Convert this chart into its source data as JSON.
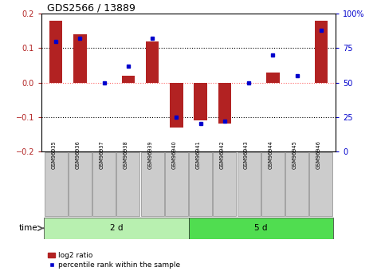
{
  "title": "GDS2566 / 13889",
  "samples": [
    "GSM96935",
    "GSM96936",
    "GSM96937",
    "GSM96938",
    "GSM96939",
    "GSM96940",
    "GSM96941",
    "GSM96942",
    "GSM96943",
    "GSM96944",
    "GSM96945",
    "GSM96946"
  ],
  "log2_ratio": [
    0.18,
    0.14,
    0.0,
    0.02,
    0.12,
    -0.13,
    -0.11,
    -0.12,
    0.0,
    0.03,
    0.0,
    0.18
  ],
  "pct_rank": [
    80,
    82,
    50,
    62,
    82,
    25,
    20,
    22,
    50,
    70,
    55,
    88
  ],
  "groups": [
    {
      "label": "2 d",
      "start": 0,
      "end": 6,
      "color": "#B8F0B0"
    },
    {
      "label": "5 d",
      "start": 6,
      "end": 12,
      "color": "#50DD50"
    }
  ],
  "ylim_left": [
    -0.2,
    0.2
  ],
  "ylim_right": [
    0,
    100
  ],
  "yticks_left": [
    -0.2,
    -0.1,
    0.0,
    0.1,
    0.2
  ],
  "yticks_right": [
    0,
    25,
    50,
    75,
    100
  ],
  "ytick_labels_right": [
    "0",
    "25",
    "50",
    "75",
    "100%"
  ],
  "bar_color": "#B22222",
  "dot_color": "#0000CC",
  "hline_color": "#FF6666",
  "grid_color": "#000000",
  "bar_width": 0.55,
  "legend_items": [
    "log2 ratio",
    "percentile rank within the sample"
  ],
  "time_label": "time",
  "bg_color": "#ffffff",
  "sample_box_color": "#CCCCCC"
}
